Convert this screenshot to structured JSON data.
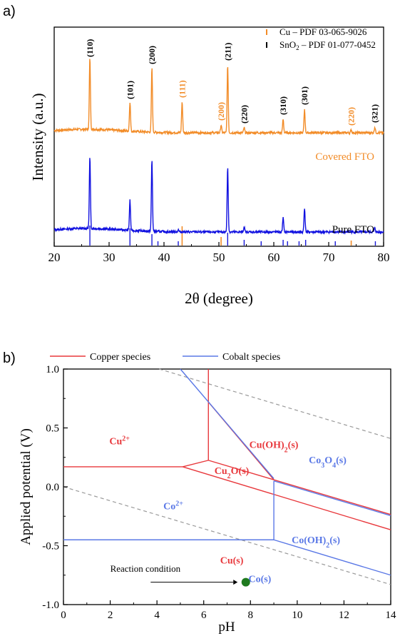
{
  "colors": {
    "copper": "#f28c28",
    "tin": "#1818d8",
    "pure": "#1010e0",
    "cu_line": "#e8383c",
    "co_line": "#5a78e6",
    "dot": "#1f7a1f",
    "dash": "#9a9a9a"
  },
  "panel_labels": [
    "a)",
    "b)"
  ],
  "chart_data": [
    {
      "type": "line",
      "xlabel": "2θ (degree)",
      "ylabel": "Intensity (a.u.)",
      "xlim": [
        20,
        80
      ],
      "x_ticks": [
        "20",
        "30",
        "40",
        "50",
        "60",
        "70",
        "80"
      ],
      "legend": {
        "position": "top-right",
        "entries": [
          "Cu – PDF 03-065-9026",
          "SnO2 – PDF 01-077-0452"
        ]
      },
      "series": [
        {
          "name": "Covered FTO",
          "peaks": [
            [
              26.5,
              100
            ],
            [
              33.8,
              41
            ],
            [
              37.8,
              90
            ],
            [
              43.3,
              43
            ],
            [
              50.4,
              11
            ],
            [
              51.6,
              95
            ],
            [
              54.6,
              7
            ],
            [
              61.7,
              19
            ],
            [
              65.6,
              33
            ],
            [
              74.1,
              4
            ],
            [
              78.4,
              8
            ]
          ]
        },
        {
          "name": "Pure FTO",
          "peaks": [
            [
              26.5,
              100
            ],
            [
              33.8,
              42
            ],
            [
              37.8,
              100
            ],
            [
              42.6,
              3
            ],
            [
              51.6,
              91
            ],
            [
              54.6,
              7
            ],
            [
              61.7,
              20
            ],
            [
              65.6,
              34
            ],
            [
              78.4,
              6
            ]
          ]
        }
      ],
      "reference_lines": {
        "Cu": [
          43.3,
          50.4,
          74.1
        ],
        "SnO2": [
          26.5,
          33.8,
          37.8,
          38.9,
          42.6,
          51.6,
          54.6,
          57.7,
          61.7,
          62.5,
          64.6,
          65.8,
          71.2,
          78.5
        ]
      },
      "peak_labels": [
        {
          "x": 26.5,
          "text": "(110)",
          "phase": "SnO2"
        },
        {
          "x": 33.8,
          "text": "(101)",
          "phase": "SnO2"
        },
        {
          "x": 37.8,
          "text": "(200)",
          "phase": "SnO2"
        },
        {
          "x": 43.3,
          "text": "(111)",
          "phase": "Cu"
        },
        {
          "x": 50.4,
          "text": "(200)",
          "phase": "Cu"
        },
        {
          "x": 51.6,
          "text": "(211)",
          "phase": "SnO2"
        },
        {
          "x": 54.6,
          "text": "(220)",
          "phase": "SnO2"
        },
        {
          "x": 61.7,
          "text": "(310)",
          "phase": "SnO2"
        },
        {
          "x": 65.6,
          "text": "(301)",
          "phase": "SnO2"
        },
        {
          "x": 74.1,
          "text": "(220)",
          "phase": "Cu"
        },
        {
          "x": 78.4,
          "text": "(321)",
          "phase": "SnO2"
        }
      ]
    },
    {
      "type": "line",
      "xlabel": "pH",
      "ylabel": "Applied potential (V)",
      "xlim": [
        0,
        14
      ],
      "ylim": [
        -1.0,
        1.0
      ],
      "x_ticks": [
        "0",
        "2",
        "4",
        "6",
        "8",
        "10",
        "12",
        "14"
      ],
      "y_ticks": [
        "-1.0",
        "-0.5",
        "0.0",
        "0.5",
        "1.0"
      ],
      "legend": {
        "position": "top",
        "entries": [
          "Copper species",
          "Cobalt species"
        ]
      },
      "series": [
        {
          "name": "Copper species",
          "segments": [
            [
              [
                0,
                0.17
              ],
              [
                5.1,
                0.17
              ]
            ],
            [
              [
                5.1,
                0.17
              ],
              [
                6.2,
                0.225
              ]
            ],
            [
              [
                6.2,
                0.225
              ],
              [
                6.2,
                1.0
              ]
            ],
            [
              [
                6.2,
                0.225
              ],
              [
                14,
                -0.235
              ]
            ],
            [
              [
                5.1,
                0.17
              ],
              [
                14,
                -0.365
              ]
            ],
            [
              [
                6.2,
                0.72
              ],
              [
                9.0,
                0.06
              ]
            ]
          ]
        },
        {
          "name": "Cobalt species",
          "segments": [
            [
              [
                0,
                -0.45
              ],
              [
                9.0,
                -0.45
              ]
            ],
            [
              [
                9.0,
                -0.45
              ],
              [
                9.0,
                0.05
              ]
            ],
            [
              [
                9.0,
                -0.45
              ],
              [
                14,
                -0.75
              ]
            ],
            [
              [
                9.0,
                0.05
              ],
              [
                14,
                -0.245
              ]
            ],
            [
              [
                5.0,
                1.0
              ],
              [
                9.0,
                0.07
              ]
            ]
          ]
        }
      ],
      "dashed_lines": [
        [
          [
            0,
            0.0
          ],
          [
            14,
            -0.83
          ]
        ],
        [
          [
            4.1,
            1.0
          ],
          [
            14,
            0.41
          ]
        ]
      ],
      "regions": [
        {
          "text": "Cu²⁺",
          "x": 2.4,
          "y": 0.36,
          "species": "copper"
        },
        {
          "text": "Cu(OH)₂(s)",
          "x": 9.0,
          "y": 0.33,
          "species": "copper"
        },
        {
          "text": "Cu₂O(s)",
          "x": 7.2,
          "y": 0.11,
          "species": "copper"
        },
        {
          "text": "Co₃O₄(s)",
          "x": 11.3,
          "y": 0.2,
          "species": "cobalt"
        },
        {
          "text": "Co²⁺",
          "x": 4.7,
          "y": -0.19,
          "species": "cobalt"
        },
        {
          "text": "Co(OH)₂(s)",
          "x": 10.8,
          "y": -0.48,
          "species": "cobalt"
        },
        {
          "text": "Cu(s)",
          "x": 7.2,
          "y": -0.65,
          "species": "copper"
        },
        {
          "text": "Co(s)",
          "x": 8.4,
          "y": -0.81,
          "species": "cobalt"
        }
      ],
      "reaction_point": {
        "x": 7.8,
        "y": -0.81
      },
      "annotations": [
        {
          "text": "Reaction condition",
          "x": 2.0,
          "y": -0.72
        }
      ]
    }
  ]
}
